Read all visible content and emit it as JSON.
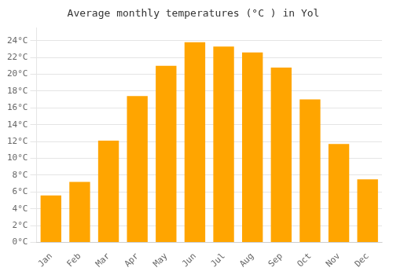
{
  "chart_data": {
    "type": "bar",
    "title": "Average monthly temperatures (°C ) in Yol",
    "categories": [
      "Jan",
      "Feb",
      "Mar",
      "Apr",
      "May",
      "Jun",
      "Jul",
      "Aug",
      "Sep",
      "Oct",
      "Nov",
      "Dec"
    ],
    "values": [
      5.6,
      7.2,
      12.1,
      17.4,
      21.0,
      23.8,
      23.3,
      22.6,
      20.8,
      17.0,
      11.7,
      7.5
    ],
    "color": "#FFA500",
    "ylim": [
      0,
      25.5
    ],
    "yticks": [
      {
        "value": 0,
        "label": "0°C"
      },
      {
        "value": 2,
        "label": "2°C"
      },
      {
        "value": 4,
        "label": "4°C"
      },
      {
        "value": 6,
        "label": "6°C"
      },
      {
        "value": 8,
        "label": "8°C"
      },
      {
        "value": 10,
        "label": "10°C"
      },
      {
        "value": 12,
        "label": "12°C"
      },
      {
        "value": 14,
        "label": "14°C"
      },
      {
        "value": 16,
        "label": "16°C"
      },
      {
        "value": 18,
        "label": "18°C"
      },
      {
        "value": 20,
        "label": "20°C"
      },
      {
        "value": 22,
        "label": "22°C"
      },
      {
        "value": 24,
        "label": "24°C"
      }
    ],
    "grid": true
  }
}
